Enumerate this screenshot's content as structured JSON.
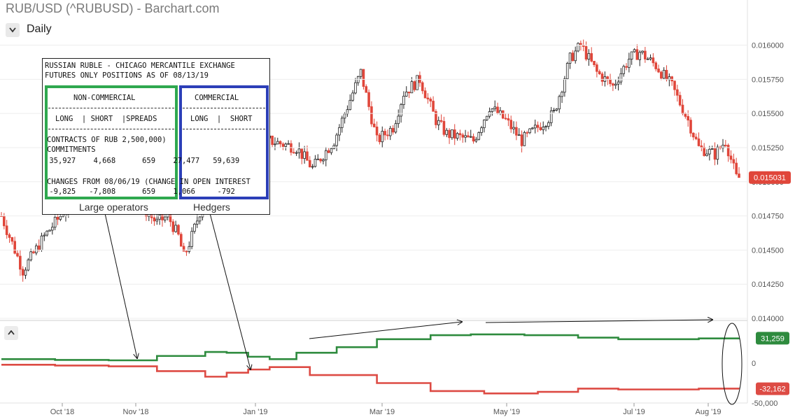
{
  "title": "RUB/USD (^RUBUSD) - Barchart.com",
  "period": "Daily",
  "icons": {
    "period_toggle": "chevron-down-icon",
    "panel_toggle": "chevron-up-icon"
  },
  "colors": {
    "up": "#222222",
    "down": "#e0463a",
    "net_long": "#2e8b3e",
    "net_short": "#dd4b44",
    "price_badge": "#e0463a"
  },
  "chart_data": [
    {
      "type": "candlestick",
      "y_axis_side": "right",
      "y_ticks": [
        "0.016000",
        "0.015750",
        "0.015500",
        "0.015250",
        "0.015000",
        "0.014750",
        "0.014500",
        "0.014250",
        "0.014000"
      ],
      "ylim": [
        0.014,
        0.0161
      ],
      "last_price": "0.015031",
      "x_ticks": [
        "Oct '18",
        "Nov '18",
        "Jan '19",
        "Mar '19",
        "May '19",
        "Jul '19",
        "Aug '19"
      ],
      "approx_close_path": [
        [
          0,
          0.01475
        ],
        [
          8,
          0.01435
        ],
        [
          16,
          0.0146
        ],
        [
          24,
          0.0148
        ],
        [
          34,
          0.015
        ],
        [
          48,
          0.0149
        ],
        [
          58,
          0.0147
        ],
        [
          62,
          0.01475
        ],
        [
          66,
          0.0146
        ],
        [
          68,
          0.01445
        ],
        [
          71,
          0.0146
        ],
        [
          76,
          0.0149
        ],
        [
          84,
          0.01505
        ],
        [
          92,
          0.0152
        ],
        [
          100,
          0.0153
        ],
        [
          110,
          0.01525
        ],
        [
          116,
          0.0151
        ],
        [
          124,
          0.0153
        ],
        [
          130,
          0.0156
        ],
        [
          134,
          0.0158
        ],
        [
          140,
          0.0153
        ],
        [
          146,
          0.0154
        ],
        [
          150,
          0.01565
        ],
        [
          156,
          0.01575
        ],
        [
          162,
          0.01545
        ],
        [
          166,
          0.01535
        ],
        [
          176,
          0.0153
        ],
        [
          182,
          0.01555
        ],
        [
          188,
          0.01545
        ],
        [
          194,
          0.0153
        ],
        [
          200,
          0.0154
        ],
        [
          206,
          0.0155
        ],
        [
          212,
          0.0159
        ],
        [
          216,
          0.016
        ],
        [
          222,
          0.0158
        ],
        [
          228,
          0.0157
        ],
        [
          234,
          0.0159
        ],
        [
          238,
          0.01595
        ],
        [
          244,
          0.01585
        ],
        [
          250,
          0.0157
        ],
        [
          256,
          0.01545
        ],
        [
          260,
          0.01525
        ],
        [
          266,
          0.0152
        ],
        [
          270,
          0.0153
        ],
        [
          274,
          0.01503
        ]
      ],
      "x_range": [
        0,
        275
      ]
    },
    {
      "type": "line",
      "title": "",
      "y_ticks": [
        "0",
        "-50,000"
      ],
      "ylim": [
        -50000,
        50000
      ],
      "series": [
        {
          "color": "#2e8b3e",
          "last": "31,259",
          "points": [
            [
              0,
              5000
            ],
            [
              20,
              4000
            ],
            [
              40,
              3500
            ],
            [
              58,
              9000
            ],
            [
              76,
              14000
            ],
            [
              84,
              13000
            ],
            [
              92,
              8000
            ],
            [
              100,
              5000
            ],
            [
              110,
              13000
            ],
            [
              125,
              20000
            ],
            [
              140,
              30000
            ],
            [
              160,
              35000
            ],
            [
              175,
              36000
            ],
            [
              195,
              35000
            ],
            [
              215,
              32000
            ],
            [
              230,
              30000
            ],
            [
              260,
              31000
            ],
            [
              275,
              31259
            ]
          ]
        },
        {
          "color": "#dd4b44",
          "last": "-32,162",
          "points": [
            [
              0,
              -2000
            ],
            [
              20,
              -3000
            ],
            [
              40,
              -4000
            ],
            [
              58,
              -10000
            ],
            [
              76,
              -17000
            ],
            [
              84,
              -12000
            ],
            [
              92,
              -8000
            ],
            [
              100,
              -5000
            ],
            [
              115,
              -15000
            ],
            [
              140,
              -25000
            ],
            [
              160,
              -35000
            ],
            [
              180,
              -38000
            ],
            [
              200,
              -36000
            ],
            [
              215,
              -32000
            ],
            [
              230,
              -33000
            ],
            [
              260,
              -32000
            ],
            [
              275,
              -32162
            ]
          ]
        }
      ]
    }
  ],
  "cot_report": {
    "line1": "RUSSIAN RUBLE - CHICAGO MERCANTILE EXCHANGE",
    "line2": "FUTURES ONLY POSITIONS AS OF 08/13/19",
    "nc_header": "NON-COMMERCIAL",
    "nc_columns": "LONG  | SHORT  |SPREADS",
    "c_header": "COMMERCIAL",
    "c_columns": "LONG  |  SHORT",
    "contracts_line": "CONTRACTS OF RUB 2,500,000)",
    "commitments_label": "COMMITMENTS",
    "commitments_values": " 35,927    4,668      659    27,477   59,639",
    "changes_label": "CHANGES FROM 08/06/19 (CHANGE IN OPEN INTEREST",
    "changes_values": " -9,825   -7,808      659    1,066     -792"
  },
  "annotations": {
    "large_operators": "Large operators",
    "hedgers": "Hedgers"
  }
}
